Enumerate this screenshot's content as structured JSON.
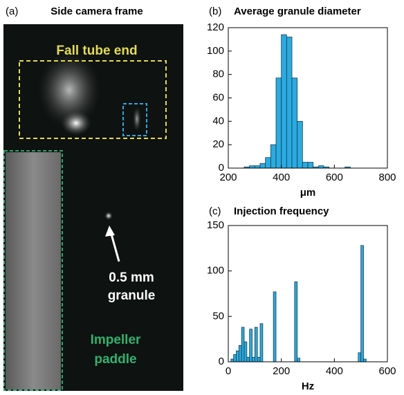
{
  "image_panel": {
    "label": "(a)",
    "title": "Side camera frame",
    "annotations": [
      "Fall tube end",
      "0.5 mm",
      "granule",
      "Impeller",
      "paddle"
    ]
  },
  "chart_data": [
    {
      "type": "histogram",
      "panel_label": "(b)",
      "title": "Average granule diameter",
      "xlabel": "μm",
      "bins": [
        260,
        280,
        300,
        320,
        340,
        360,
        380,
        400,
        420,
        440,
        460,
        480,
        500,
        520,
        540,
        560,
        580,
        600,
        620,
        640,
        660
      ],
      "values": [
        1,
        2,
        2,
        4,
        9,
        20,
        77,
        114,
        112,
        77,
        40,
        5,
        5,
        1,
        2,
        1,
        0,
        0,
        0,
        1
      ],
      "color": "#29abe2",
      "xlim": [
        200,
        800
      ],
      "xticks": [
        200,
        400,
        600,
        800
      ],
      "ylim": [
        0,
        120
      ],
      "yticks": [
        0,
        20,
        40,
        60,
        80,
        100,
        120
      ]
    },
    {
      "type": "histogram",
      "panel_label": "(c)",
      "title": "Injection frequency",
      "xlabel": "Hz",
      "bins": [
        10,
        20,
        30,
        40,
        50,
        60,
        70,
        80,
        90,
        100,
        110,
        120,
        130,
        140,
        150,
        160,
        170,
        180,
        190,
        200,
        210,
        220,
        230,
        240,
        250,
        260,
        270,
        280,
        290,
        300,
        310,
        320,
        330,
        340,
        350,
        360,
        370,
        380,
        390,
        400,
        410,
        420,
        430,
        440,
        450,
        460,
        470,
        480,
        490,
        500,
        510,
        520
      ],
      "values": [
        3,
        8,
        12,
        18,
        38,
        22,
        5,
        36,
        5,
        38,
        5,
        42,
        0,
        0,
        0,
        0,
        77,
        0,
        0,
        0,
        0,
        0,
        0,
        0,
        88,
        4,
        0,
        0,
        0,
        0,
        0,
        0,
        0,
        0,
        0,
        0,
        0,
        0,
        0,
        0,
        0,
        0,
        0,
        0,
        0,
        0,
        0,
        0,
        10,
        128,
        3
      ],
      "color": "#29abe2",
      "xlim": [
        0,
        600
      ],
      "xticks": [
        0,
        200,
        400,
        600
      ],
      "ylim": [
        0,
        150
      ],
      "yticks": [
        0,
        50,
        100,
        150
      ]
    }
  ]
}
